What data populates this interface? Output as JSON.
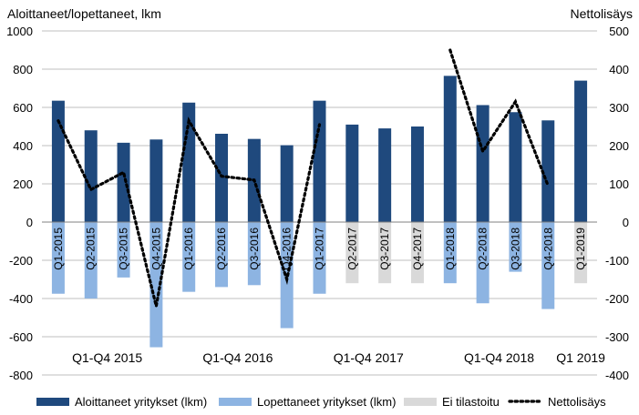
{
  "chart_data": {
    "type": "bar",
    "left_axis_title": "Aloittaneet/lopettaneet, lkm",
    "right_axis_title": "Nettolisäys",
    "left_ylim": [
      -800,
      1000
    ],
    "left_ticks": [
      -800,
      -600,
      -400,
      -200,
      0,
      200,
      400,
      600,
      800,
      1000
    ],
    "right_ylim": [
      -400,
      500
    ],
    "right_ticks": [
      -400,
      -300,
      -200,
      -100,
      0,
      100,
      200,
      300,
      400,
      500
    ],
    "grid": true,
    "legend_position": "bottom",
    "categories": [
      "Q1-2015",
      "Q2-2015",
      "Q3-2015",
      "Q4-2015",
      "Q1-2016",
      "Q2-2016",
      "Q3-2016",
      "Q4-2016",
      "Q1-2017",
      "Q2-2017",
      "Q3-2017",
      "Q4-2017",
      "Q1-2018",
      "Q2-2018",
      "Q3-2018",
      "Q4-2018",
      "Q1-2019"
    ],
    "year_groups": [
      {
        "label": "Q1-Q4 2015",
        "start": 0,
        "end": 3
      },
      {
        "label": "Q1-Q4 2016",
        "start": 4,
        "end": 7
      },
      {
        "label": "Q1-Q4 2017",
        "start": 8,
        "end": 11
      },
      {
        "label": "Q1-Q4 2018",
        "start": 12,
        "end": 15
      },
      {
        "label": "Q1 2019",
        "start": 16,
        "end": 16
      }
    ],
    "series": [
      {
        "name": "Aloittaneet yritykset (lkm)",
        "axis": "left",
        "kind": "bar",
        "color": "#1f497d",
        "values": [
          635,
          480,
          415,
          432,
          625,
          462,
          435,
          402,
          635,
          510,
          490,
          500,
          765,
          612,
          575,
          532,
          740
        ]
      },
      {
        "name": "Lopettaneet yritykset (lkm)",
        "axis": "left",
        "kind": "bar",
        "color": "#8db4e2",
        "values": [
          -375,
          -400,
          -290,
          -655,
          -365,
          -340,
          -330,
          -555,
          -375,
          null,
          null,
          null,
          -320,
          -425,
          -260,
          -455,
          null
        ]
      },
      {
        "name": "Ei tilastoitu",
        "axis": "left",
        "kind": "bar",
        "color": "#d9d9d9",
        "values": [
          null,
          null,
          null,
          null,
          null,
          null,
          null,
          null,
          null,
          -320,
          -320,
          -320,
          null,
          null,
          null,
          null,
          -320
        ]
      },
      {
        "name": "Nettolisäys",
        "axis": "right",
        "kind": "line",
        "style": "dotted",
        "color": "#000000",
        "values": [
          265,
          85,
          130,
          -220,
          265,
          120,
          110,
          -150,
          255,
          null,
          null,
          null,
          450,
          185,
          315,
          95,
          null
        ]
      }
    ]
  }
}
